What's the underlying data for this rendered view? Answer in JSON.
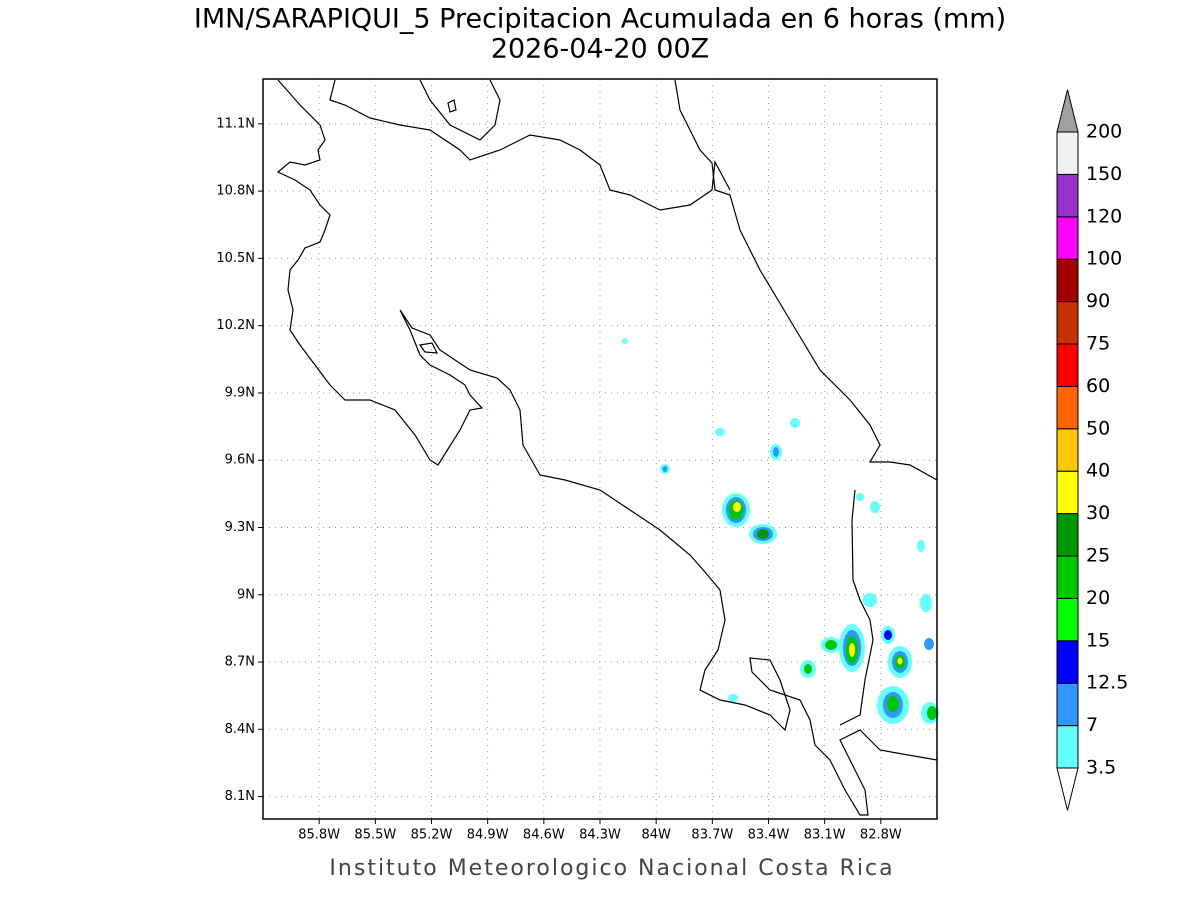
{
  "title": "IMN/SARAPIQUI_5 Precipitacion Acumulada en 6 horas (mm)",
  "subtitle": "2026-04-20 00Z",
  "footer": "Instituto Meteorologico Nacional Costa Rica",
  "map": {
    "lon_range": [
      -86.1,
      -82.5
    ],
    "lat_range": [
      8.0,
      11.3
    ],
    "lon_ticks": [
      {
        "value": -85.8,
        "label": "85.8W"
      },
      {
        "value": -85.5,
        "label": "85.5W"
      },
      {
        "value": -85.2,
        "label": "85.2W"
      },
      {
        "value": -84.9,
        "label": "84.9W"
      },
      {
        "value": -84.6,
        "label": "84.6W"
      },
      {
        "value": -84.3,
        "label": "84.3W"
      },
      {
        "value": -84.0,
        "label": "84W"
      },
      {
        "value": -83.7,
        "label": "83.7W"
      },
      {
        "value": -83.4,
        "label": "83.4W"
      },
      {
        "value": -83.1,
        "label": "83.1W"
      },
      {
        "value": -82.8,
        "label": "82.8W"
      }
    ],
    "lat_ticks": [
      {
        "value": 8.1,
        "label": "8.1N"
      },
      {
        "value": 8.4,
        "label": "8.4N"
      },
      {
        "value": 8.7,
        "label": "8.7N"
      },
      {
        "value": 9.0,
        "label": "9N"
      },
      {
        "value": 9.3,
        "label": "9.3N"
      },
      {
        "value": 9.6,
        "label": "9.6N"
      },
      {
        "value": 9.9,
        "label": "9.9N"
      },
      {
        "value": 10.2,
        "label": "10.2N"
      },
      {
        "value": 10.5,
        "label": "10.5N"
      },
      {
        "value": 10.8,
        "label": "10.8N"
      },
      {
        "value": 11.1,
        "label": "11.1N"
      }
    ],
    "grid": true
  },
  "colorbar": {
    "levels": [
      3.5,
      7,
      12.5,
      15,
      20,
      25,
      30,
      40,
      50,
      60,
      75,
      90,
      100,
      120,
      150,
      200
    ],
    "colors": [
      "#ffffff",
      "#64ffff",
      "#3296ff",
      "#0000ff",
      "#00ff00",
      "#00c800",
      "#009600",
      "#ffff00",
      "#ffc800",
      "#ff6400",
      "#ff0000",
      "#c83200",
      "#a00000",
      "#ff00ff",
      "#9632c8",
      "#f0f0f0",
      "#a0a0a0"
    ]
  }
}
